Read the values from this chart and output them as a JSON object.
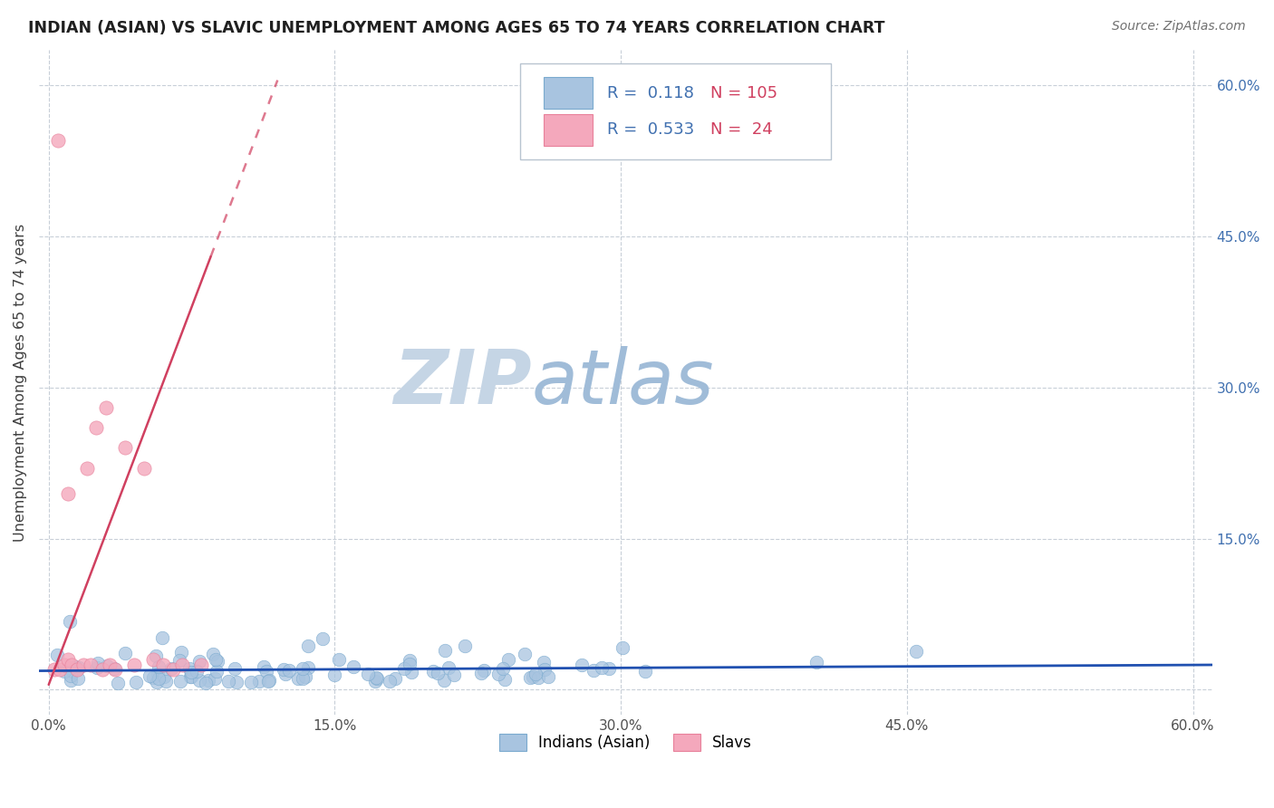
{
  "title": "INDIAN (ASIAN) VS SLAVIC UNEMPLOYMENT AMONG AGES 65 TO 74 YEARS CORRELATION CHART",
  "source": "Source: ZipAtlas.com",
  "ylabel": "Unemployment Among Ages 65 to 74 years",
  "xlim": [
    -0.005,
    0.61
  ],
  "ylim": [
    -0.025,
    0.635
  ],
  "xticks": [
    0.0,
    0.15,
    0.3,
    0.45,
    0.6
  ],
  "xticklabels": [
    "0.0%",
    "15.0%",
    "30.0%",
    "45.0%",
    "60.0%"
  ],
  "yticks": [
    0.0,
    0.15,
    0.3,
    0.45,
    0.6
  ],
  "left_yticklabels": [
    "",
    "",
    "",
    "",
    ""
  ],
  "right_yticklabels": [
    "",
    "15.0%",
    "30.0%",
    "45.0%",
    "60.0%"
  ],
  "indian_color": "#a8c4e0",
  "indian_edge_color": "#7aaace",
  "slav_color": "#f4a8bc",
  "slav_edge_color": "#e8809a",
  "indian_line_color": "#2050b0",
  "slav_line_color": "#d04060",
  "indian_R": 0.118,
  "indian_N": 105,
  "slav_R": 0.533,
  "slav_N": 24,
  "watermark_zip": "ZIP",
  "watermark_atlas": "atlas",
  "watermark_color_zip": "#c5d5e5",
  "watermark_color_atlas": "#a0bcd8",
  "background_color": "#ffffff",
  "grid_color": "#c8cfd8",
  "tick_color": "#4070b0",
  "legend_text_color": "#4070b0",
  "legend_N_color": "#d04060",
  "title_color": "#202020"
}
